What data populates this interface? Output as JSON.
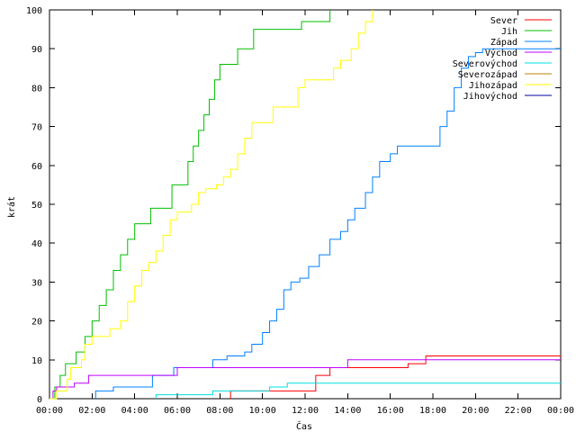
{
  "chart_data": {
    "type": "line",
    "step": true,
    "xlabel": "Čas",
    "ylabel": "krát",
    "xlim": [
      "00:00",
      "24:00"
    ],
    "ylim": [
      0,
      100
    ],
    "grid": false,
    "legend_position": "top-right",
    "x_ticks": [
      "00:00",
      "02:00",
      "04:00",
      "06:00",
      "08:00",
      "10:00",
      "12:00",
      "14:00",
      "16:00",
      "18:00",
      "20:00",
      "22:00",
      "00:00"
    ],
    "y_ticks": [
      "0",
      "10",
      "20",
      "30",
      "40",
      "50",
      "60",
      "70",
      "80",
      "90",
      "100"
    ],
    "series": [
      {
        "name": "Sever",
        "color": "#ff0000",
        "points": [
          [
            "08:30",
            0
          ],
          [
            "08:30",
            2
          ],
          [
            "12:30",
            2
          ],
          [
            "12:30",
            6
          ],
          [
            "13:10",
            6
          ],
          [
            "13:10",
            8
          ],
          [
            "16:50",
            8
          ],
          [
            "16:50",
            9
          ],
          [
            "17:40",
            9
          ],
          [
            "17:40",
            11
          ],
          [
            "24:00",
            11
          ]
        ]
      },
      {
        "name": "Jih",
        "color": "#00c000",
        "points": [
          [
            "00:00",
            0
          ],
          [
            "00:15",
            3
          ],
          [
            "00:30",
            6
          ],
          [
            "00:45",
            9
          ],
          [
            "01:15",
            12
          ],
          [
            "01:40",
            16
          ],
          [
            "02:00",
            20
          ],
          [
            "02:20",
            24
          ],
          [
            "02:40",
            28
          ],
          [
            "03:00",
            33
          ],
          [
            "03:20",
            37
          ],
          [
            "03:40",
            41
          ],
          [
            "04:00",
            45
          ],
          [
            "04:30",
            45
          ],
          [
            "04:45",
            49
          ],
          [
            "05:30",
            49
          ],
          [
            "05:45",
            55
          ],
          [
            "06:15",
            55
          ],
          [
            "06:30",
            61
          ],
          [
            "06:45",
            65
          ],
          [
            "07:00",
            69
          ],
          [
            "07:15",
            73
          ],
          [
            "07:30",
            77
          ],
          [
            "07:45",
            82
          ],
          [
            "08:00",
            86
          ],
          [
            "08:40",
            86
          ],
          [
            "08:50",
            90
          ],
          [
            "09:20",
            90
          ],
          [
            "09:35",
            95
          ],
          [
            "11:40",
            95
          ],
          [
            "11:50",
            97
          ],
          [
            "13:00",
            97
          ],
          [
            "13:10",
            100
          ]
        ]
      },
      {
        "name": "Západ",
        "color": "#0080ff",
        "points": [
          [
            "02:10",
            0
          ],
          [
            "02:10",
            2
          ],
          [
            "03:00",
            2
          ],
          [
            "03:00",
            3
          ],
          [
            "04:45",
            3
          ],
          [
            "04:50",
            6
          ],
          [
            "05:45",
            6
          ],
          [
            "05:50",
            8
          ],
          [
            "07:30",
            8
          ],
          [
            "07:40",
            10
          ],
          [
            "08:20",
            11
          ],
          [
            "09:10",
            12
          ],
          [
            "09:30",
            14
          ],
          [
            "10:00",
            17
          ],
          [
            "10:20",
            20
          ],
          [
            "10:40",
            23
          ],
          [
            "11:00",
            28
          ],
          [
            "11:20",
            30
          ],
          [
            "11:45",
            31
          ],
          [
            "12:10",
            34
          ],
          [
            "12:40",
            37
          ],
          [
            "13:10",
            41
          ],
          [
            "13:40",
            43
          ],
          [
            "14:00",
            46
          ],
          [
            "14:20",
            49
          ],
          [
            "14:50",
            53
          ],
          [
            "15:10",
            57
          ],
          [
            "15:30",
            61
          ],
          [
            "16:00",
            63
          ],
          [
            "16:20",
            65
          ],
          [
            "18:00",
            65
          ],
          [
            "18:20",
            70
          ],
          [
            "18:40",
            74
          ],
          [
            "19:00",
            80
          ],
          [
            "19:20",
            85
          ],
          [
            "19:40",
            88
          ],
          [
            "20:00",
            89
          ],
          [
            "20:20",
            90
          ],
          [
            "24:00",
            90
          ]
        ]
      },
      {
        "name": "Východ",
        "color": "#c000ff",
        "points": [
          [
            "00:00",
            0
          ],
          [
            "00:10",
            2
          ],
          [
            "00:20",
            3
          ],
          [
            "01:10",
            3
          ],
          [
            "01:10",
            4
          ],
          [
            "01:50",
            4
          ],
          [
            "01:50",
            6
          ],
          [
            "05:50",
            6
          ],
          [
            "06:00",
            8
          ],
          [
            "13:50",
            8
          ],
          [
            "14:00",
            10
          ],
          [
            "24:00",
            10
          ]
        ]
      },
      {
        "name": "Severovýchod",
        "color": "#00e0e0",
        "points": [
          [
            "05:00",
            0
          ],
          [
            "05:00",
            1
          ],
          [
            "07:30",
            1
          ],
          [
            "07:40",
            2
          ],
          [
            "10:00",
            2
          ],
          [
            "10:20",
            3
          ],
          [
            "11:00",
            3
          ],
          [
            "11:10",
            4
          ],
          [
            "24:00",
            4
          ]
        ]
      },
      {
        "name": "Severozápad",
        "color": "#c08000",
        "points": []
      },
      {
        "name": "Jihozápad",
        "color": "#ffff00",
        "points": [
          [
            "00:00",
            0
          ],
          [
            "00:20",
            2
          ],
          [
            "00:50",
            5
          ],
          [
            "01:00",
            8
          ],
          [
            "01:30",
            10
          ],
          [
            "01:40",
            14
          ],
          [
            "02:00",
            16
          ],
          [
            "02:50",
            18
          ],
          [
            "03:20",
            20
          ],
          [
            "03:40",
            25
          ],
          [
            "04:00",
            29
          ],
          [
            "04:20",
            33
          ],
          [
            "04:40",
            35
          ],
          [
            "05:00",
            38
          ],
          [
            "05:20",
            42
          ],
          [
            "05:40",
            46
          ],
          [
            "06:00",
            48
          ],
          [
            "06:40",
            50
          ],
          [
            "07:00",
            53
          ],
          [
            "07:20",
            54
          ],
          [
            "07:50",
            55
          ],
          [
            "08:10",
            57
          ],
          [
            "08:30",
            59
          ],
          [
            "08:50",
            63
          ],
          [
            "09:10",
            67
          ],
          [
            "09:30",
            71
          ],
          [
            "10:10",
            71
          ],
          [
            "10:30",
            75
          ],
          [
            "11:30",
            75
          ],
          [
            "11:40",
            80
          ],
          [
            "12:00",
            82
          ],
          [
            "13:00",
            82
          ],
          [
            "13:20",
            85
          ],
          [
            "13:40",
            87
          ],
          [
            "14:10",
            90
          ],
          [
            "14:30",
            94
          ],
          [
            "14:50",
            97
          ],
          [
            "15:10",
            100
          ]
        ]
      },
      {
        "name": "Jihovýchod",
        "color": "#0000a0",
        "points": []
      }
    ]
  }
}
